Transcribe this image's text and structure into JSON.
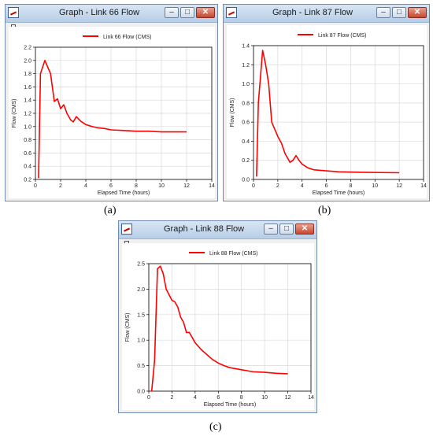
{
  "windows": [
    {
      "title": "Graph - Link 66 Flow",
      "caption": "(a)",
      "chart_data": {
        "type": "line",
        "series": [
          {
            "name": "Link 66 Flow (CMS)",
            "color": "#ff0000",
            "x": [
              0.25,
              0.4,
              0.75,
              1.2,
              1.5,
              1.75,
              2.0,
              2.25,
              2.5,
              2.8,
              3.0,
              3.25,
              3.6,
              4.0,
              4.5,
              5.0,
              5.5,
              6.0,
              7.0,
              8.0,
              9.0,
              10.0,
              12.0
            ],
            "y": [
              0.22,
              1.8,
              2.0,
              1.8,
              1.38,
              1.42,
              1.27,
              1.33,
              1.2,
              1.1,
              1.07,
              1.15,
              1.08,
              1.03,
              1.0,
              0.98,
              0.97,
              0.95,
              0.94,
              0.93,
              0.93,
              0.92,
              0.92
            ]
          }
        ],
        "xlabel": "Elapsed Time (hours)",
        "ylabel": "Flow (CMS)",
        "xlim": [
          0,
          14
        ],
        "ylim": [
          0.2,
          2.2
        ],
        "xticks": [
          0,
          2,
          4,
          6,
          8,
          10,
          12,
          14
        ],
        "yticks": [
          0.2,
          0.4,
          0.6,
          0.8,
          1.0,
          1.2,
          1.4,
          1.6,
          1.8,
          2.0,
          2.2
        ],
        "ytick_format": 1,
        "grid": true,
        "legend": "top"
      }
    },
    {
      "title": "Graph - Link 87 Flow",
      "caption": "(b)",
      "chart_data": {
        "type": "line",
        "series": [
          {
            "name": "Link 87 Flow (CMS)",
            "color": "#ff0000",
            "x": [
              0.25,
              0.4,
              0.75,
              1.0,
              1.25,
              1.5,
              2.0,
              2.3,
              2.6,
              3.0,
              3.25,
              3.5,
              3.75,
              4.0,
              4.5,
              5.0,
              6.0,
              7.0,
              9.0,
              12.0
            ],
            "y": [
              0.03,
              0.8,
              1.35,
              1.2,
              1.0,
              0.6,
              0.45,
              0.38,
              0.27,
              0.18,
              0.2,
              0.25,
              0.2,
              0.16,
              0.12,
              0.1,
              0.09,
              0.08,
              0.075,
              0.07
            ]
          }
        ],
        "xlabel": "Elapsed Time (hours)",
        "ylabel": "Flow (CMS)",
        "xlim": [
          0,
          14
        ],
        "ylim": [
          0,
          1.4
        ],
        "xticks": [
          0,
          2,
          4,
          6,
          8,
          10,
          12,
          14
        ],
        "yticks": [
          0,
          0.2,
          0.4,
          0.6,
          0.8,
          1.0,
          1.2,
          1.4
        ],
        "ytick_format": 1,
        "grid": true,
        "legend": "top"
      }
    },
    {
      "title": "Graph - Link 88 Flow",
      "caption": "(c)",
      "chart_data": {
        "type": "line",
        "series": [
          {
            "name": "Link 88 Flow (CMS)",
            "color": "#ff0000",
            "x": [
              0.25,
              0.5,
              0.75,
              1.0,
              1.25,
              1.5,
              2.0,
              2.25,
              2.5,
              2.75,
              3.0,
              3.25,
              3.5,
              4.0,
              4.5,
              5.0,
              5.5,
              6.0,
              6.5,
              7.0,
              8.0,
              9.0,
              10.0,
              11.0,
              12.0
            ],
            "y": [
              0.0,
              0.6,
              2.4,
              2.45,
              2.3,
              2.0,
              1.78,
              1.75,
              1.65,
              1.45,
              1.35,
              1.15,
              1.15,
              0.95,
              0.82,
              0.72,
              0.62,
              0.55,
              0.5,
              0.46,
              0.42,
              0.38,
              0.37,
              0.35,
              0.34
            ]
          }
        ],
        "xlabel": "Elapsed Time (hours)",
        "ylabel": "Flow (CMS)",
        "xlim": [
          0,
          14
        ],
        "ylim": [
          0,
          2.5
        ],
        "xticks": [
          0,
          2,
          4,
          6,
          8,
          10,
          12,
          14
        ],
        "yticks": [
          0,
          0.5,
          1.0,
          1.5,
          2.0,
          2.5
        ],
        "ytick_format": 1,
        "grid": true,
        "legend": "top"
      }
    }
  ],
  "controls": {
    "minimize": "–",
    "maximize": "□",
    "close": "✕"
  }
}
